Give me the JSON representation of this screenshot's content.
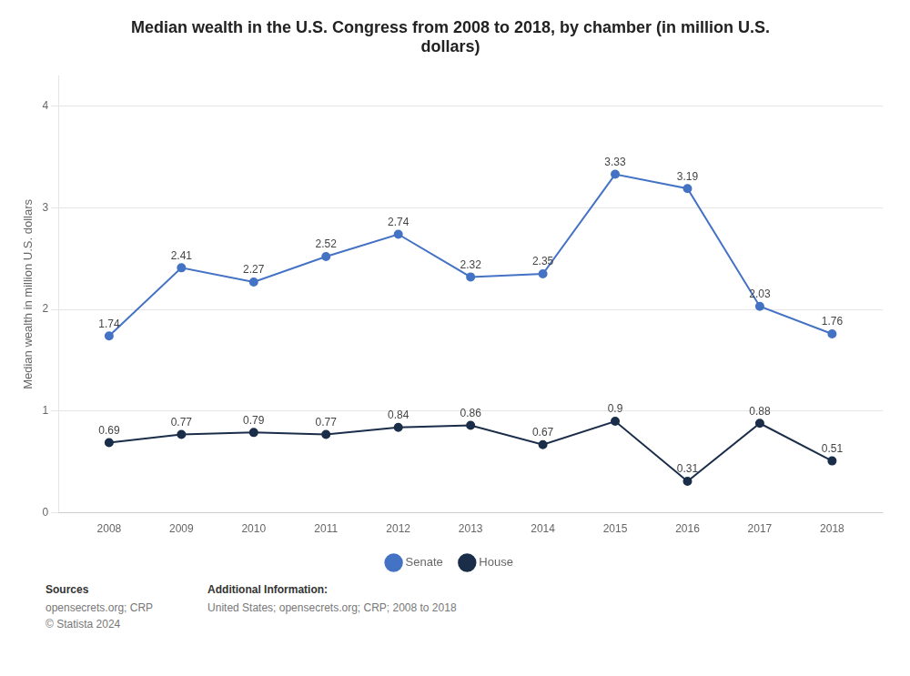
{
  "chart_data": {
    "type": "line",
    "title": "Median wealth in the U.S. Congress from 2008 to 2018, by chamber (in million U.S.\ndollars)",
    "y_label": "Median wealth in million U.S. dollars",
    "x": [
      2008,
      2009,
      2010,
      2011,
      2012,
      2013,
      2014,
      2015,
      2016,
      2017,
      2018
    ],
    "series": [
      {
        "name": "Senate",
        "color": "#4472c4",
        "marker": "circle",
        "line_style": "solid",
        "values": [
          1.74,
          2.41,
          2.27,
          2.52,
          2.74,
          2.32,
          2.35,
          3.33,
          3.19,
          2.03,
          1.76
        ]
      },
      {
        "name": "House",
        "color": "#1a2e4a",
        "marker": "circle",
        "line_style": "solid",
        "values": [
          0.69,
          0.77,
          0.79,
          0.77,
          0.84,
          0.86,
          0.67,
          0.9,
          0.31,
          0.88,
          0.51
        ]
      }
    ],
    "xlim": [
      2007.3,
      2018.7
    ],
    "xticks": [
      2008,
      2009,
      2010,
      2011,
      2012,
      2013,
      2014,
      2015,
      2016,
      2017,
      2018
    ],
    "ylim": [
      0,
      4.3
    ],
    "yticks": [
      0,
      1,
      2,
      3,
      4
    ],
    "grid": "y",
    "legend": "bottom",
    "data_labels": true,
    "annotations": [
      {
        "title": "Sources",
        "text": "opensecrets.org; CRP\n© Statista 2024"
      },
      {
        "title": "Additional Information:",
        "text": "United States; opensecrets.org; CRP; 2008 to 2018"
      }
    ]
  }
}
